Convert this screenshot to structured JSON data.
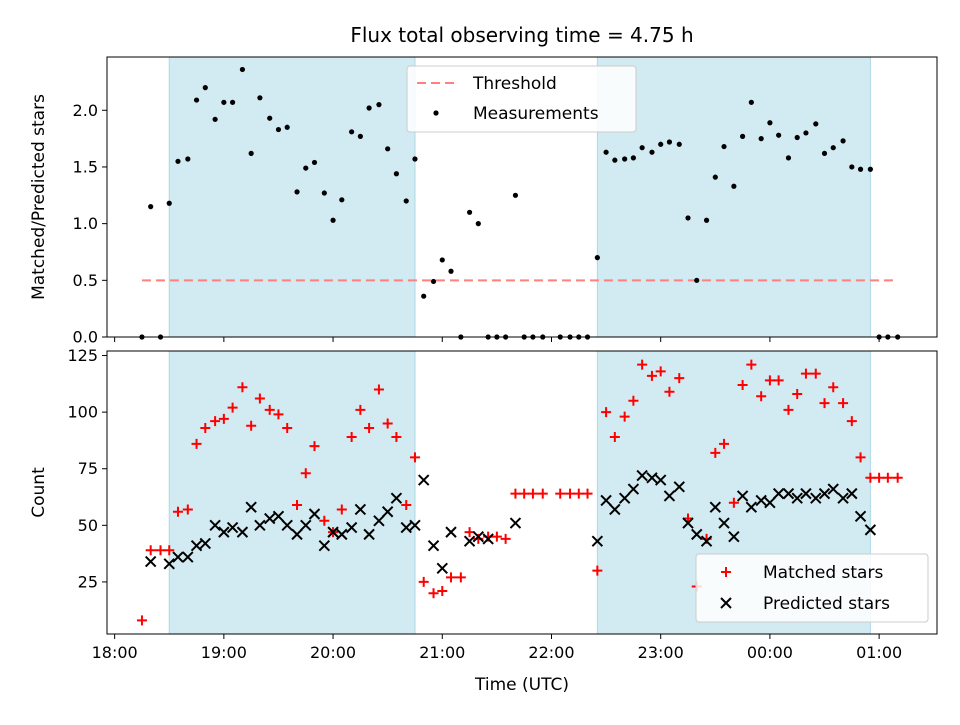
{
  "chart_data": [
    {
      "type": "scatter",
      "title": "Flux total observing time = 4.75 h",
      "xlabel": "",
      "ylabel": "Matched/Predicted stars",
      "xlim": [
        17.93,
        25.53
      ],
      "ylim": [
        0,
        2.47
      ],
      "yticks": [
        0.0,
        0.5,
        1.0,
        1.5,
        2.0
      ],
      "ytick_labels": [
        "0.0",
        "0.5",
        "1.0",
        "1.5",
        "2.0"
      ],
      "grid": false,
      "legend_position": "top-center",
      "shaded_intervals": [
        [
          18.5,
          20.75
        ],
        [
          22.42,
          24.92
        ]
      ],
      "shade_color": "#add8e6",
      "series": [
        {
          "name": "Threshold",
          "kind": "dashed-line",
          "color": "#ff8080",
          "x": [
            18.25,
            25.17
          ],
          "y": [
            0.5,
            0.5
          ]
        },
        {
          "name": "Measurements",
          "kind": "points",
          "color": "#000000",
          "x": [
            18.25,
            18.33,
            18.42,
            18.5,
            18.58,
            18.67,
            18.75,
            18.83,
            18.92,
            19.0,
            19.08,
            19.17,
            19.25,
            19.33,
            19.42,
            19.5,
            19.58,
            19.67,
            19.75,
            19.83,
            19.92,
            20.0,
            20.08,
            20.17,
            20.25,
            20.33,
            20.42,
            20.5,
            20.58,
            20.67,
            20.75,
            20.83,
            20.92,
            21.0,
            21.08,
            21.17,
            21.25,
            21.33,
            21.42,
            21.5,
            21.58,
            21.67,
            21.75,
            21.83,
            21.92,
            22.08,
            22.17,
            22.25,
            22.33,
            22.42,
            22.5,
            22.58,
            22.67,
            22.75,
            22.83,
            22.92,
            23.0,
            23.08,
            23.17,
            23.25,
            23.33,
            23.42,
            23.5,
            23.58,
            23.67,
            23.75,
            23.83,
            23.92,
            24.0,
            24.08,
            24.17,
            24.25,
            24.33,
            24.42,
            24.5,
            24.58,
            24.67,
            24.75,
            24.83,
            24.92,
            25.0,
            25.08,
            25.17
          ],
          "y": [
            0.0,
            1.15,
            0.0,
            1.18,
            1.55,
            1.57,
            2.09,
            2.2,
            1.92,
            2.07,
            2.07,
            2.36,
            1.62,
            2.11,
            1.93,
            1.83,
            1.85,
            1.28,
            1.49,
            1.54,
            1.27,
            1.03,
            1.21,
            1.81,
            1.77,
            2.02,
            2.05,
            1.66,
            1.44,
            1.2,
            1.57,
            0.36,
            0.49,
            0.68,
            0.58,
            0.0,
            1.1,
            1.0,
            0.0,
            0.0,
            0.0,
            1.25,
            0.0,
            0.0,
            0.0,
            0.0,
            0.0,
            0.0,
            0.0,
            0.7,
            1.63,
            1.56,
            1.57,
            1.58,
            1.67,
            1.63,
            1.7,
            1.72,
            1.7,
            1.05,
            0.5,
            1.03,
            1.41,
            1.68,
            1.33,
            1.77,
            2.07,
            1.75,
            1.89,
            1.78,
            1.58,
            1.76,
            1.8,
            1.88,
            1.62,
            1.67,
            1.73,
            1.5,
            1.48,
            1.48,
            0.0,
            0.0,
            0.0
          ]
        }
      ]
    },
    {
      "type": "scatter",
      "title": "",
      "xlabel": "Time (UTC)",
      "ylabel": "Count",
      "xlim": [
        17.93,
        25.53
      ],
      "ylim": [
        2,
        127
      ],
      "yticks": [
        25,
        50,
        75,
        100,
        125
      ],
      "ytick_labels": [
        "25",
        "50",
        "75",
        "100",
        "125"
      ],
      "xticks": [
        18,
        19,
        20,
        21,
        22,
        23,
        24,
        25
      ],
      "xtick_labels": [
        "18:00",
        "19:00",
        "20:00",
        "21:00",
        "22:00",
        "23:00",
        "00:00",
        "01:00"
      ],
      "grid": false,
      "legend_position": "bottom-right",
      "shaded_intervals": [
        [
          18.5,
          20.75
        ],
        [
          22.42,
          24.92
        ]
      ],
      "shade_color": "#add8e6",
      "series": [
        {
          "name": "Matched stars",
          "marker": "plus",
          "color": "#ff0000",
          "x": [
            18.25,
            18.33,
            18.42,
            18.5,
            18.58,
            18.67,
            18.75,
            18.83,
            18.92,
            19.0,
            19.08,
            19.17,
            19.25,
            19.33,
            19.42,
            19.5,
            19.58,
            19.67,
            19.75,
            19.83,
            19.92,
            20.0,
            20.08,
            20.17,
            20.25,
            20.33,
            20.42,
            20.5,
            20.58,
            20.67,
            20.75,
            20.83,
            20.92,
            21.0,
            21.08,
            21.17,
            21.25,
            21.33,
            21.42,
            21.5,
            21.58,
            21.67,
            21.75,
            21.83,
            21.92,
            22.08,
            22.17,
            22.25,
            22.33,
            22.42,
            22.5,
            22.58,
            22.67,
            22.75,
            22.83,
            22.92,
            23.0,
            23.08,
            23.17,
            23.25,
            23.33,
            23.42,
            23.5,
            23.58,
            23.67,
            23.75,
            23.83,
            23.92,
            24.0,
            24.08,
            24.17,
            24.25,
            24.33,
            24.42,
            24.5,
            24.58,
            24.67,
            24.75,
            24.83,
            24.92,
            25.0,
            25.08,
            25.17
          ],
          "y": [
            8,
            39,
            39,
            39,
            56,
            57,
            86,
            93,
            96,
            97,
            102,
            111,
            94,
            106,
            101,
            99,
            93,
            59,
            73,
            85,
            52,
            47,
            57,
            89,
            101,
            93,
            110,
            95,
            89,
            59,
            80,
            25,
            20,
            21,
            27,
            27,
            47,
            44,
            45,
            45,
            44,
            64,
            64,
            64,
            64,
            64,
            64,
            64,
            64,
            30,
            100,
            89,
            98,
            105,
            121,
            116,
            118,
            109,
            115,
            53,
            23,
            44,
            82,
            86,
            60,
            112,
            121,
            107,
            114,
            114,
            101,
            108,
            117,
            117,
            104,
            111,
            104,
            96,
            80,
            71,
            71,
            71,
            71
          ]
        },
        {
          "name": "Predicted stars",
          "marker": "x",
          "color": "#000000",
          "x": [
            18.33,
            18.5,
            18.58,
            18.67,
            18.75,
            18.83,
            18.92,
            19.0,
            19.08,
            19.17,
            19.25,
            19.33,
            19.42,
            19.5,
            19.58,
            19.67,
            19.75,
            19.83,
            19.92,
            20.0,
            20.08,
            20.17,
            20.25,
            20.33,
            20.42,
            20.5,
            20.58,
            20.67,
            20.75,
            20.83,
            20.92,
            21.0,
            21.08,
            21.25,
            21.33,
            21.42,
            21.67,
            22.42,
            22.5,
            22.58,
            22.67,
            22.75,
            22.83,
            22.92,
            23.0,
            23.08,
            23.17,
            23.25,
            23.33,
            23.42,
            23.5,
            23.58,
            23.67,
            23.75,
            23.83,
            23.92,
            24.0,
            24.08,
            24.17,
            24.25,
            24.33,
            24.42,
            24.5,
            24.58,
            24.67,
            24.75,
            24.83,
            24.92
          ],
          "y": [
            34,
            33,
            36,
            36,
            41,
            42,
            50,
            47,
            49,
            47,
            58,
            50,
            53,
            54,
            50,
            46,
            50,
            55,
            41,
            47,
            46,
            49,
            57,
            46,
            52,
            56,
            62,
            49,
            50,
            70,
            41,
            31,
            47,
            43,
            45,
            44,
            51,
            43,
            61,
            57,
            62,
            66,
            72,
            71,
            70,
            63,
            67,
            51,
            46,
            43,
            58,
            51,
            45,
            63,
            58,
            61,
            60,
            64,
            64,
            62,
            64,
            62,
            64,
            66,
            62,
            64,
            54,
            48
          ]
        }
      ]
    }
  ]
}
